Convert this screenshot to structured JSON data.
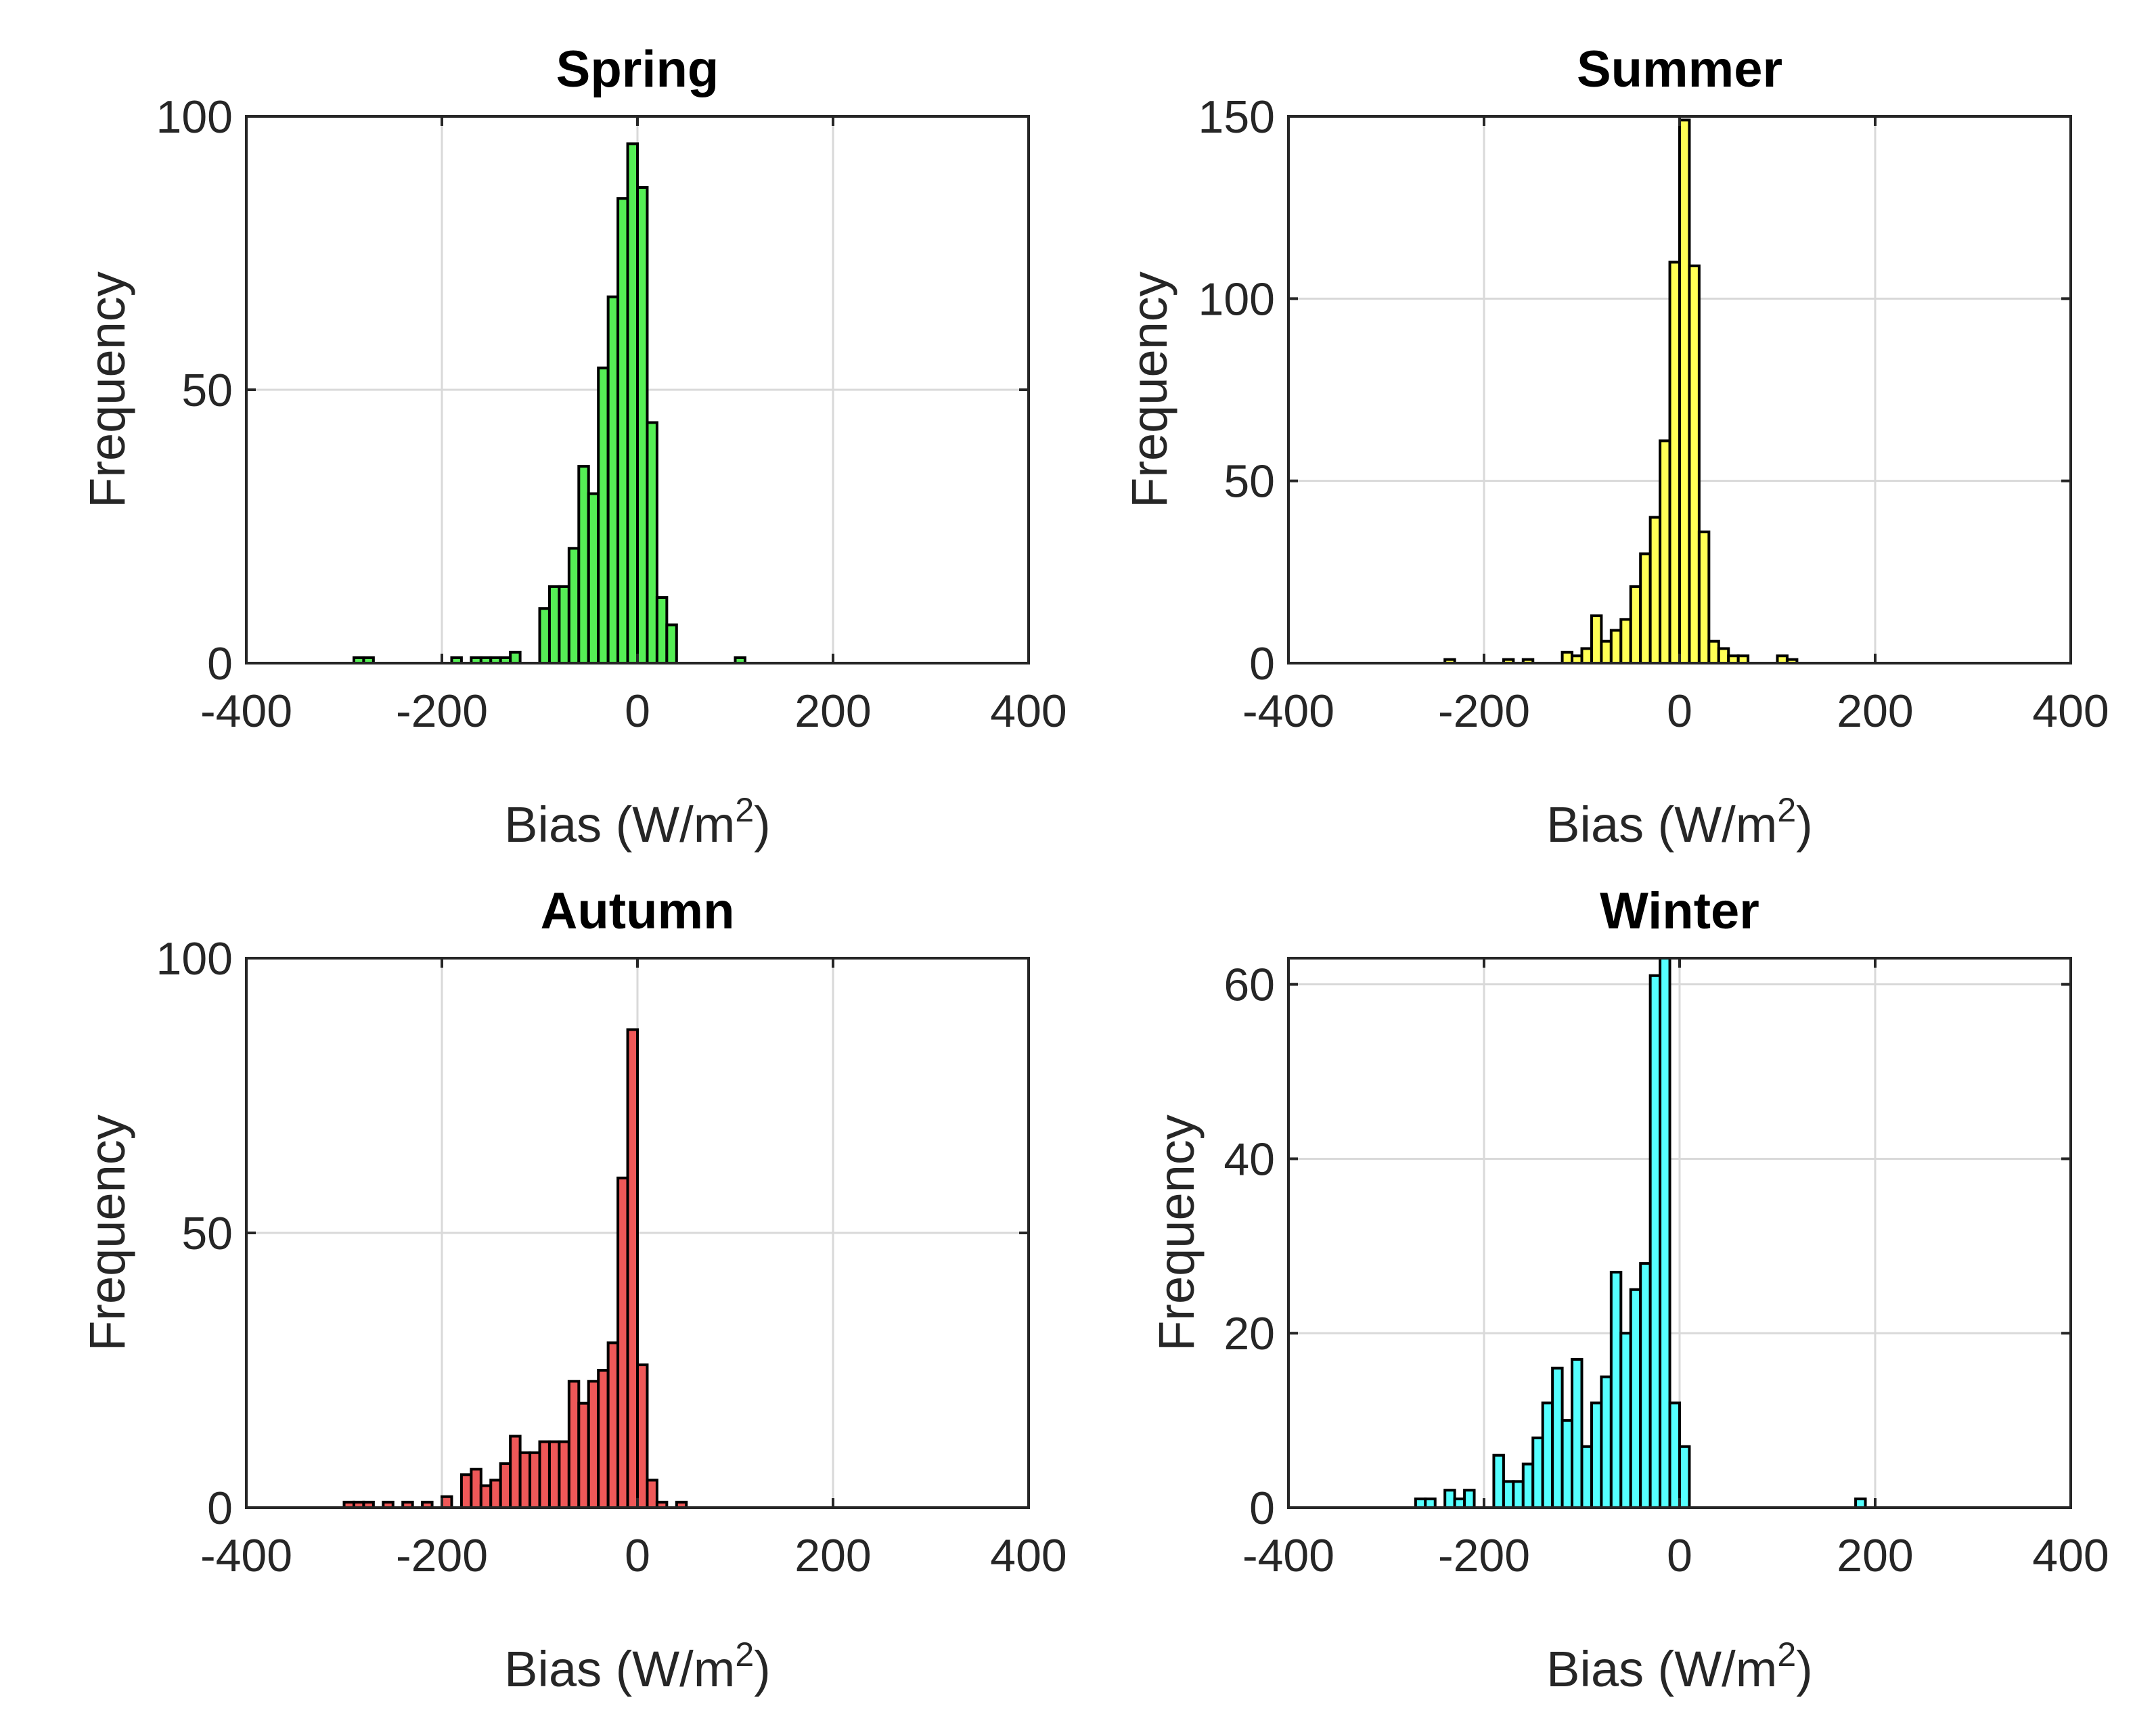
{
  "figure": {
    "colors": {
      "spring": "#55ee55",
      "summer": "#ffff55",
      "autumn": "#ef5858",
      "winter": "#55ffff",
      "edge": "#000000",
      "grid": "#d9d9d9",
      "axis": "#262626"
    }
  },
  "chart_data": [
    {
      "type": "bar",
      "title": "Spring",
      "xlabel": "Bias (W/m",
      "xlabel_sup": "2",
      "xlabel_close": ")",
      "ylabel": "Frequency",
      "xlim": [
        -400,
        400
      ],
      "ylim": [
        0,
        100
      ],
      "xticks": [
        -400,
        -200,
        0,
        200,
        400
      ],
      "yticks": [
        0,
        50,
        100
      ],
      "bin_width": 10,
      "color_key": "spring",
      "bins": [
        {
          "x": -290,
          "v": 1
        },
        {
          "x": -280,
          "v": 1
        },
        {
          "x": -190,
          "v": 1
        },
        {
          "x": -170,
          "v": 1
        },
        {
          "x": -160,
          "v": 1
        },
        {
          "x": -150,
          "v": 1
        },
        {
          "x": -140,
          "v": 1
        },
        {
          "x": -130,
          "v": 2
        },
        {
          "x": -100,
          "v": 10
        },
        {
          "x": -90,
          "v": 14
        },
        {
          "x": -80,
          "v": 14
        },
        {
          "x": -70,
          "v": 21
        },
        {
          "x": -60,
          "v": 36
        },
        {
          "x": -50,
          "v": 31
        },
        {
          "x": -40,
          "v": 54
        },
        {
          "x": -30,
          "v": 67
        },
        {
          "x": -20,
          "v": 85
        },
        {
          "x": -10,
          "v": 95
        },
        {
          "x": 0,
          "v": 87
        },
        {
          "x": 10,
          "v": 44
        },
        {
          "x": 20,
          "v": 12
        },
        {
          "x": 30,
          "v": 7
        },
        {
          "x": 100,
          "v": 1
        }
      ]
    },
    {
      "type": "bar",
      "title": "Summer",
      "xlabel": "Bias (W/m",
      "xlabel_sup": "2",
      "xlabel_close": ")",
      "ylabel": "Frequency",
      "xlim": [
        -400,
        400
      ],
      "ylim": [
        0,
        150
      ],
      "xticks": [
        -400,
        -200,
        0,
        200,
        400
      ],
      "yticks": [
        0,
        50,
        100,
        150
      ],
      "bin_width": 10,
      "color_key": "summer",
      "bins": [
        {
          "x": -240,
          "v": 1
        },
        {
          "x": -180,
          "v": 1
        },
        {
          "x": -160,
          "v": 1
        },
        {
          "x": -120,
          "v": 3
        },
        {
          "x": -110,
          "v": 2
        },
        {
          "x": -100,
          "v": 4
        },
        {
          "x": -90,
          "v": 13
        },
        {
          "x": -80,
          "v": 6
        },
        {
          "x": -70,
          "v": 9
        },
        {
          "x": -60,
          "v": 12
        },
        {
          "x": -50,
          "v": 21
        },
        {
          "x": -40,
          "v": 30
        },
        {
          "x": -30,
          "v": 40
        },
        {
          "x": -20,
          "v": 61
        },
        {
          "x": -10,
          "v": 110
        },
        {
          "x": 0,
          "v": 149
        },
        {
          "x": 10,
          "v": 109
        },
        {
          "x": 20,
          "v": 36
        },
        {
          "x": 30,
          "v": 6
        },
        {
          "x": 40,
          "v": 4
        },
        {
          "x": 50,
          "v": 2
        },
        {
          "x": 60,
          "v": 2
        },
        {
          "x": 100,
          "v": 2
        },
        {
          "x": 110,
          "v": 1
        }
      ]
    },
    {
      "type": "bar",
      "title": "Autumn",
      "xlabel": "Bias (W/m",
      "xlabel_sup": "2",
      "xlabel_close": ")",
      "ylabel": "Frequency",
      "xlim": [
        -400,
        400
      ],
      "ylim": [
        0,
        100
      ],
      "xticks": [
        -400,
        -200,
        0,
        200,
        400
      ],
      "yticks": [
        0,
        50,
        100
      ],
      "bin_width": 10,
      "color_key": "autumn",
      "bins": [
        {
          "x": -300,
          "v": 1
        },
        {
          "x": -290,
          "v": 1
        },
        {
          "x": -280,
          "v": 1
        },
        {
          "x": -260,
          "v": 1
        },
        {
          "x": -240,
          "v": 1
        },
        {
          "x": -220,
          "v": 1
        },
        {
          "x": -200,
          "v": 2
        },
        {
          "x": -180,
          "v": 6
        },
        {
          "x": -170,
          "v": 7
        },
        {
          "x": -160,
          "v": 4
        },
        {
          "x": -150,
          "v": 5
        },
        {
          "x": -140,
          "v": 8
        },
        {
          "x": -130,
          "v": 13
        },
        {
          "x": -120,
          "v": 10
        },
        {
          "x": -110,
          "v": 10
        },
        {
          "x": -100,
          "v": 12
        },
        {
          "x": -90,
          "v": 12
        },
        {
          "x": -80,
          "v": 12
        },
        {
          "x": -70,
          "v": 23
        },
        {
          "x": -60,
          "v": 19
        },
        {
          "x": -50,
          "v": 23
        },
        {
          "x": -40,
          "v": 25
        },
        {
          "x": -30,
          "v": 30
        },
        {
          "x": -20,
          "v": 60
        },
        {
          "x": -10,
          "v": 87
        },
        {
          "x": 0,
          "v": 26
        },
        {
          "x": 10,
          "v": 5
        },
        {
          "x": 20,
          "v": 1
        },
        {
          "x": 40,
          "v": 1
        }
      ]
    },
    {
      "type": "bar",
      "title": "Winter",
      "xlabel": "Bias (W/m",
      "xlabel_sup": "2",
      "xlabel_close": ")",
      "ylabel": "Frequency",
      "xlim": [
        -400,
        400
      ],
      "ylim": [
        0,
        63
      ],
      "xticks": [
        -400,
        -200,
        0,
        200,
        400
      ],
      "yticks": [
        0,
        20,
        40,
        60
      ],
      "bin_width": 10,
      "color_key": "winter",
      "bins": [
        {
          "x": -270,
          "v": 1
        },
        {
          "x": -260,
          "v": 1
        },
        {
          "x": -240,
          "v": 2
        },
        {
          "x": -230,
          "v": 1
        },
        {
          "x": -220,
          "v": 2
        },
        {
          "x": -190,
          "v": 6
        },
        {
          "x": -180,
          "v": 3
        },
        {
          "x": -170,
          "v": 3
        },
        {
          "x": -160,
          "v": 5
        },
        {
          "x": -150,
          "v": 8
        },
        {
          "x": -140,
          "v": 12
        },
        {
          "x": -130,
          "v": 16
        },
        {
          "x": -120,
          "v": 10
        },
        {
          "x": -110,
          "v": 17
        },
        {
          "x": -100,
          "v": 7
        },
        {
          "x": -90,
          "v": 12
        },
        {
          "x": -80,
          "v": 15
        },
        {
          "x": -70,
          "v": 27
        },
        {
          "x": -60,
          "v": 20
        },
        {
          "x": -50,
          "v": 25
        },
        {
          "x": -40,
          "v": 28
        },
        {
          "x": -30,
          "v": 61
        },
        {
          "x": -20,
          "v": 63
        },
        {
          "x": -10,
          "v": 12
        },
        {
          "x": 0,
          "v": 7
        },
        {
          "x": 180,
          "v": 1
        }
      ]
    }
  ]
}
